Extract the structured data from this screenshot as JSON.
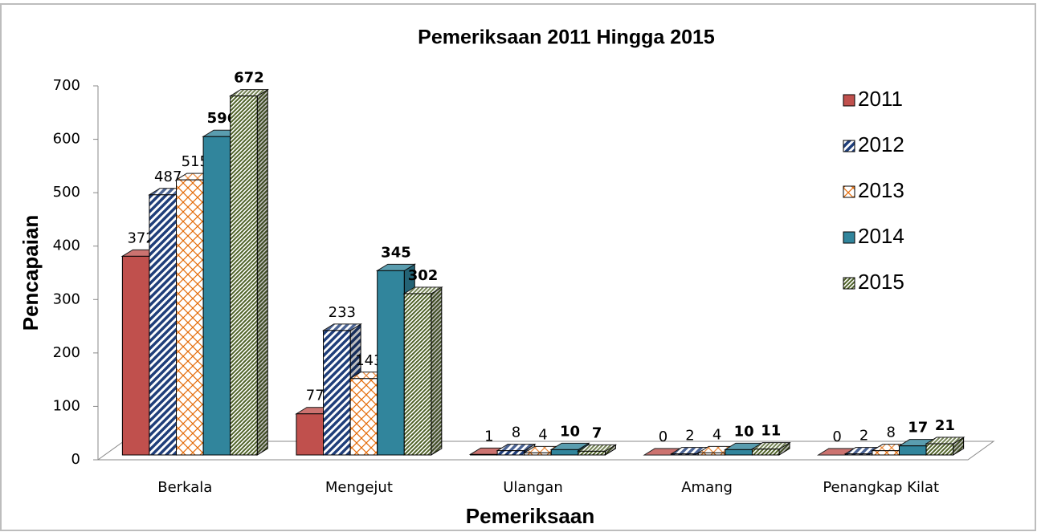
{
  "chart_data": {
    "type": "bar3d",
    "title": "Pemeriksaan 2011 Hingga 2015",
    "x_label": "Pemeriksaan",
    "y_label": "Pencapaian",
    "categories": [
      "Berkala",
      "Mengejut",
      "Ulangan",
      "Amang",
      "Penangkap Kilat"
    ],
    "series": [
      {
        "name": "2011",
        "color": "#c0504d",
        "pattern": "solid",
        "label_bold": false,
        "values": [
          372,
          77,
          1,
          0,
          0
        ]
      },
      {
        "name": "2012",
        "color": "#1f3e7a",
        "pattern": "diagonal",
        "label_bold": false,
        "values": [
          487,
          233,
          8,
          2,
          2
        ]
      },
      {
        "name": "2013",
        "color": "#e46c0a",
        "pattern": "crosshatch",
        "label_bold": false,
        "values": [
          515,
          143,
          4,
          4,
          8
        ]
      },
      {
        "name": "2014",
        "color": "#31859c",
        "pattern": "solid",
        "label_bold": true,
        "values": [
          596,
          345,
          10,
          10,
          17
        ]
      },
      {
        "name": "2015",
        "color": "#4f6228",
        "pattern": "diagonal-dense",
        "label_bold": true,
        "values": [
          672,
          302,
          7,
          11,
          21
        ]
      }
    ],
    "ylim": [
      0,
      700
    ],
    "yticks": [
      0,
      100,
      200,
      300,
      400,
      500,
      600,
      700
    ],
    "legend": "right"
  }
}
